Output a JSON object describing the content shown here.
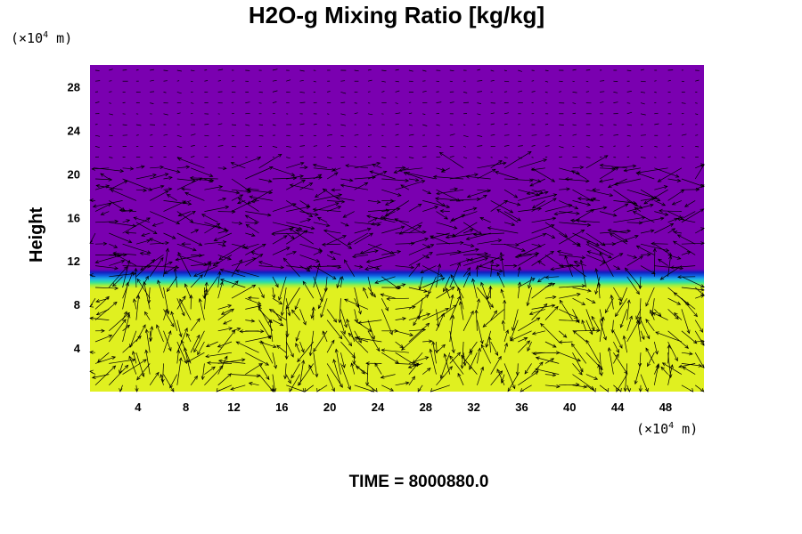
{
  "chart_data": {
    "type": "heatmap",
    "title": "H2O-g Mixing Ratio [kg/kg]",
    "ylabel": "Height",
    "xlabel": "",
    "x_unit": {
      "prefix": "(×10",
      "exp": "4",
      "suffix": " m)"
    },
    "y_unit": {
      "prefix": "(×10",
      "exp": "4",
      "suffix": " m)"
    },
    "x_ticks": [
      4,
      8,
      12,
      16,
      20,
      24,
      28,
      32,
      36,
      40,
      44,
      48
    ],
    "y_ticks": [
      4,
      8,
      12,
      16,
      20,
      24,
      28
    ],
    "xlim": [
      0,
      51.2
    ],
    "ylim": [
      0,
      30
    ],
    "field": {
      "description_bands": [
        {
          "y_from": 0,
          "y_to": 9.2,
          "level": "high",
          "color": "#e0f020"
        },
        {
          "y_from": 9.2,
          "y_to": 9.8,
          "level": "mid",
          "color": "#40e060"
        },
        {
          "y_from": 9.8,
          "y_to": 10.3,
          "level": "mid",
          "color": "#20c0e0"
        },
        {
          "y_from": 10.3,
          "y_to": 11.0,
          "level": "low",
          "color": "#1040d0"
        },
        {
          "y_from": 11.0,
          "y_to": 30,
          "level": "lowest",
          "color": "#7a00b0"
        }
      ]
    },
    "vector_overlay": true,
    "grid": false
  },
  "footer": {
    "time_label": "TIME = 8000880.0"
  }
}
